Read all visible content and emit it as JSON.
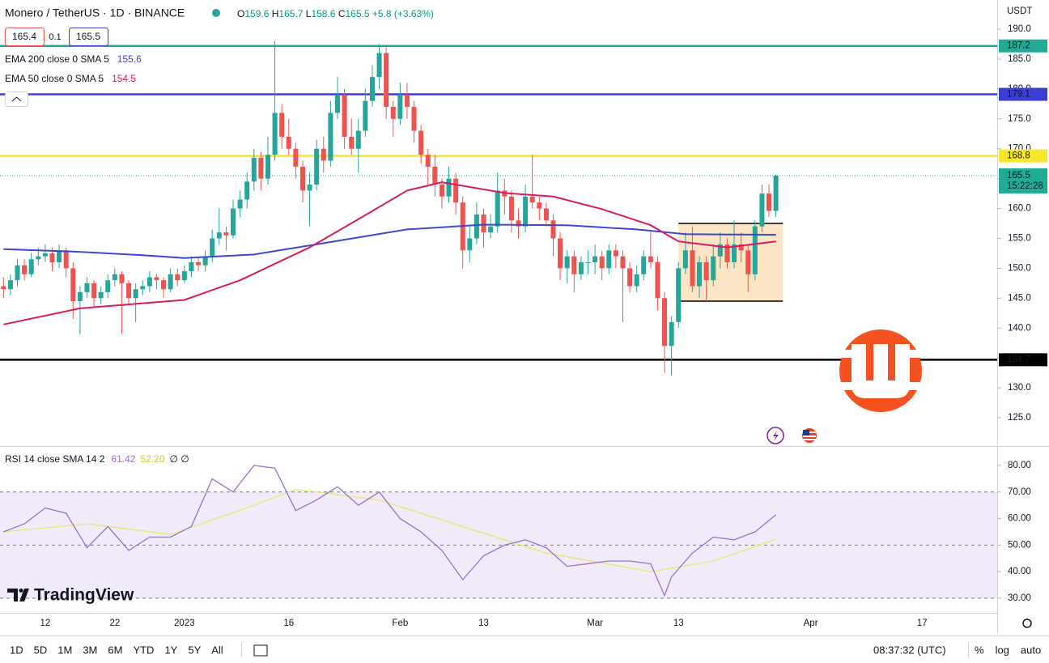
{
  "header": {
    "symbol": "Monero / TetherUS · 1D · BINANCE",
    "ohlc": [
      {
        "label": "O",
        "value": 159.6
      },
      {
        "label": "H",
        "value": 165.7
      },
      {
        "label": "L",
        "value": 158.6
      },
      {
        "label": "C",
        "value": 165.5
      }
    ],
    "change": "+5.8 (+3.63%)",
    "bid": "165.4",
    "spread": "0.1",
    "ask": "165.5"
  },
  "currency": "USDT",
  "branding": "TradingView",
  "chart_data": [
    {
      "type": "candlestick",
      "up_color": "#26a69a",
      "down_color": "#ef5350",
      "ohlc": [
        [
          147,
          148.5,
          145,
          146.5
        ],
        [
          146.5,
          149,
          145.5,
          148
        ],
        [
          148,
          151.5,
          147,
          150.5
        ],
        [
          150.5,
          151.5,
          148,
          149
        ],
        [
          149,
          152.5,
          148.5,
          151.5
        ],
        [
          151.5,
          153.5,
          150.5,
          152
        ],
        [
          152,
          154,
          151,
          152.5
        ],
        [
          152.5,
          153.5,
          149.5,
          151
        ],
        [
          151,
          154,
          150,
          153
        ],
        [
          153,
          153.5,
          148.5,
          150
        ],
        [
          150,
          151,
          141.5,
          144.5
        ],
        [
          144.5,
          147,
          139,
          146
        ],
        [
          146,
          148.5,
          145,
          147.5
        ],
        [
          147.5,
          148,
          143.5,
          145
        ],
        [
          145,
          147,
          144,
          146
        ],
        [
          146,
          149,
          145,
          148
        ],
        [
          148,
          150,
          147,
          149
        ],
        [
          149,
          149.5,
          139,
          147.5
        ],
        [
          147.5,
          148,
          144,
          145
        ],
        [
          145,
          147.5,
          141,
          146.5
        ],
        [
          146.5,
          148,
          145.5,
          147
        ],
        [
          147,
          149.5,
          146,
          148.5
        ],
        [
          148.5,
          149,
          146.5,
          148
        ],
        [
          148,
          148.5,
          145,
          146.5
        ],
        [
          146.5,
          150,
          146,
          149
        ],
        [
          149,
          150,
          147,
          148
        ],
        [
          148,
          150.5,
          147.5,
          149.5
        ],
        [
          149.5,
          152,
          148.5,
          151
        ],
        [
          151,
          152,
          149.5,
          150.5
        ],
        [
          150.5,
          153,
          149.5,
          152
        ],
        [
          152,
          156.5,
          151,
          155
        ],
        [
          155,
          160,
          154,
          156
        ],
        [
          156,
          157,
          153,
          155.5
        ],
        [
          155.5,
          161.5,
          155,
          160
        ],
        [
          160,
          163,
          158.5,
          161.5
        ],
        [
          161.5,
          166,
          160,
          164.5
        ],
        [
          164.5,
          170,
          163,
          168.5
        ],
        [
          168.5,
          169.5,
          163,
          165
        ],
        [
          165,
          172,
          164,
          169
        ],
        [
          169,
          188,
          168,
          176
        ],
        [
          176,
          177.5,
          170,
          172
        ],
        [
          172,
          175,
          169,
          170
        ],
        [
          170,
          171,
          165,
          167
        ],
        [
          167,
          168,
          161,
          163
        ],
        [
          163,
          166,
          157,
          164
        ],
        [
          164,
          171.5,
          163,
          170
        ],
        [
          170,
          172,
          166,
          168
        ],
        [
          168,
          178,
          167,
          176
        ],
        [
          176,
          182,
          175,
          179
        ],
        [
          179,
          180,
          170,
          172
        ],
        [
          172,
          175,
          169,
          170
        ],
        [
          170,
          175,
          166,
          173
        ],
        [
          173,
          180,
          172,
          178
        ],
        [
          178,
          184,
          177,
          182
        ],
        [
          182,
          187.5,
          180,
          186
        ],
        [
          186,
          187,
          175,
          177
        ],
        [
          177,
          178,
          172,
          175
        ],
        [
          175,
          181,
          174,
          179
        ],
        [
          179,
          181,
          175,
          177
        ],
        [
          177,
          178,
          171,
          173
        ],
        [
          173,
          174,
          167.5,
          169
        ],
        [
          169,
          170,
          164,
          167
        ],
        [
          167,
          169,
          162,
          164
        ],
        [
          164,
          165,
          160,
          162
        ],
        [
          162,
          167,
          161,
          165
        ],
        [
          165,
          166,
          159,
          161
        ],
        [
          161,
          162,
          150,
          153
        ],
        [
          153,
          157,
          151,
          155
        ],
        [
          155,
          161,
          154,
          159
        ],
        [
          159,
          160,
          153.5,
          156
        ],
        [
          156,
          159,
          155,
          157
        ],
        [
          157,
          166,
          156,
          163
        ],
        [
          163,
          165,
          159,
          162
        ],
        [
          162,
          163,
          156,
          158
        ],
        [
          158,
          160,
          155,
          157
        ],
        [
          157,
          164,
          156,
          162
        ],
        [
          162,
          169,
          160,
          161
        ],
        [
          161,
          162,
          158,
          160
        ],
        [
          160,
          161,
          157,
          158
        ],
        [
          158,
          159,
          152,
          155
        ],
        [
          155,
          156,
          148,
          150
        ],
        [
          150,
          153,
          147.5,
          152
        ],
        [
          152,
          153,
          146,
          149
        ],
        [
          149,
          152,
          148,
          151
        ],
        [
          151,
          153,
          149,
          151
        ],
        [
          151,
          154,
          149,
          152
        ],
        [
          152,
          153,
          148,
          150
        ],
        [
          150,
          154,
          149,
          153
        ],
        [
          153,
          154,
          150,
          152
        ],
        [
          152,
          153,
          141,
          150
        ],
        [
          150,
          151,
          146,
          147
        ],
        [
          147,
          150.5,
          146,
          149
        ],
        [
          149,
          153,
          148,
          152
        ],
        [
          152,
          156,
          150,
          151
        ],
        [
          151,
          152,
          143,
          145
        ],
        [
          145,
          146,
          132.5,
          137
        ],
        [
          137,
          142,
          132,
          141
        ],
        [
          141,
          151,
          140,
          150
        ],
        [
          150,
          156,
          149,
          153
        ],
        [
          153,
          157,
          146,
          147
        ],
        [
          147,
          152,
          145,
          151
        ],
        [
          151,
          152,
          144.5,
          148
        ],
        [
          148,
          154,
          147,
          152
        ],
        [
          152,
          156,
          150,
          154
        ],
        [
          154,
          155,
          150,
          151
        ],
        [
          151,
          158,
          150,
          154
        ],
        [
          154,
          156,
          151,
          153
        ],
        [
          153,
          154,
          146,
          149
        ],
        [
          149,
          158,
          148,
          157
        ],
        [
          157,
          164,
          156,
          162.5
        ],
        [
          162.5,
          164,
          158.6,
          159.6
        ],
        [
          159.6,
          165.7,
          158.6,
          165.5
        ]
      ],
      "countdown": "15:22:28",
      "last_color": "#22ab94",
      "xlim": [
        -0.5,
        142.8
      ],
      "xticks": [
        {
          "value": 6,
          "label": "12"
        },
        {
          "value": 16,
          "label": "22"
        },
        {
          "value": 26,
          "label": "2023"
        },
        {
          "value": 41,
          "label": "16"
        },
        {
          "value": 57,
          "label": "Feb"
        },
        {
          "value": 69,
          "label": "13"
        },
        {
          "value": 85,
          "label": "Mar"
        },
        {
          "value": 97,
          "label": "13"
        },
        {
          "value": 116,
          "label": "Apr"
        },
        {
          "value": 132,
          "label": "17"
        }
      ],
      "ylim": [
        120.26,
        194.88
      ],
      "yticks": [
        {
          "value": 125,
          "label": "125.0"
        },
        {
          "value": 130,
          "label": "130.0"
        },
        {
          "value": 135,
          "label": "135.0"
        },
        {
          "value": 140,
          "label": "140.0"
        },
        {
          "value": 145,
          "label": "145.0"
        },
        {
          "value": 150,
          "label": "150.0"
        },
        {
          "value": 155,
          "label": "155.0"
        },
        {
          "value": 160,
          "label": "160.0"
        },
        {
          "value": 165,
          "label": "165.0"
        },
        {
          "value": 170,
          "label": "170.0"
        },
        {
          "value": 175,
          "label": "175.0"
        },
        {
          "value": 180,
          "label": "180.0"
        },
        {
          "value": 185,
          "label": "185.0"
        },
        {
          "value": 190,
          "label": "190.0"
        }
      ],
      "series": [
        {
          "name": "EMA 200 close 0 SMA 5",
          "color": "#3f48cc",
          "x": [
            0,
            10,
            20,
            26,
            36,
            46,
            58,
            69,
            81,
            91,
            98,
            111
          ],
          "values": [
            153.2,
            152.8,
            152.2,
            151.7,
            152.3,
            154.2,
            156.5,
            157.3,
            157.2,
            156.5,
            155.7,
            155.6
          ]
        },
        {
          "name": "EMA 50 close 0 SMA 5",
          "color": "#d81b60",
          "x": [
            0,
            11,
            26,
            34,
            44,
            51,
            58,
            63,
            72,
            79,
            86,
            93,
            97,
            104,
            111
          ],
          "values": [
            140.6,
            143.3,
            144.7,
            148,
            153.5,
            158.2,
            163,
            164.4,
            162.6,
            162,
            159.9,
            157.2,
            154.5,
            153.5,
            154.5
          ]
        }
      ],
      "levels": [
        {
          "value": 187.2,
          "color": "#22ab94"
        },
        {
          "value": 179.1,
          "color": "#3d3dd6"
        },
        {
          "value": 168.8,
          "color": "#f6e72c"
        },
        {
          "value": 134.7,
          "color": "#000000"
        }
      ],
      "box": {
        "x": [
          97,
          112
        ],
        "y": [
          144.5,
          157.5
        ],
        "color": "#fbe5c4"
      }
    },
    {
      "type": "line",
      "title": "RSI 14 close SMA 14 2",
      "extra": "∅ ∅",
      "ylim": [
        24.5,
        86.7
      ],
      "yticks": [
        {
          "value": 30,
          "label": "30.00"
        },
        {
          "value": 40,
          "label": "40.00"
        },
        {
          "value": 50,
          "label": "50.00"
        },
        {
          "value": 60,
          "label": "60.00"
        },
        {
          "value": 70,
          "label": "70.00"
        },
        {
          "value": 80,
          "label": "80.00"
        }
      ],
      "band": [
        30,
        70
      ],
      "band_color": "#f1eafa",
      "levels": [
        70,
        50,
        30
      ],
      "series": [
        {
          "color": "#9c6fd0",
          "x": [
            0,
            3,
            6,
            9,
            12,
            15,
            18,
            21,
            24,
            27,
            30,
            33,
            36,
            39,
            42,
            45,
            48,
            51,
            54,
            57,
            60,
            63,
            66,
            69,
            72,
            75,
            78,
            81,
            84,
            87,
            90,
            93,
            95,
            96,
            99,
            102,
            105,
            108,
            111
          ],
          "values": [
            55,
            58,
            64,
            62,
            49,
            57,
            48,
            53,
            53,
            57,
            75,
            70,
            80,
            79,
            63,
            67,
            72,
            65,
            70,
            60,
            55,
            48,
            37,
            46,
            50,
            52,
            49,
            42,
            43,
            44,
            44,
            43,
            31,
            38,
            47,
            53,
            52,
            55,
            61.42
          ]
        },
        {
          "color": "#e6ea6b",
          "last_label": "52.20",
          "x": [
            0,
            12,
            24,
            36,
            42,
            54,
            66,
            78,
            93,
            102,
            111
          ],
          "values": [
            55,
            58,
            54,
            65,
            71,
            67,
            57,
            47,
            40,
            44,
            52.2
          ]
        }
      ]
    }
  ],
  "toolbar": {
    "ranges": [
      "1D",
      "5D",
      "1M",
      "3M",
      "6M",
      "YTD",
      "1Y",
      "5Y",
      "All"
    ],
    "clock": "08:37:32 (UTC)",
    "options": [
      "%",
      "log",
      "auto"
    ]
  }
}
